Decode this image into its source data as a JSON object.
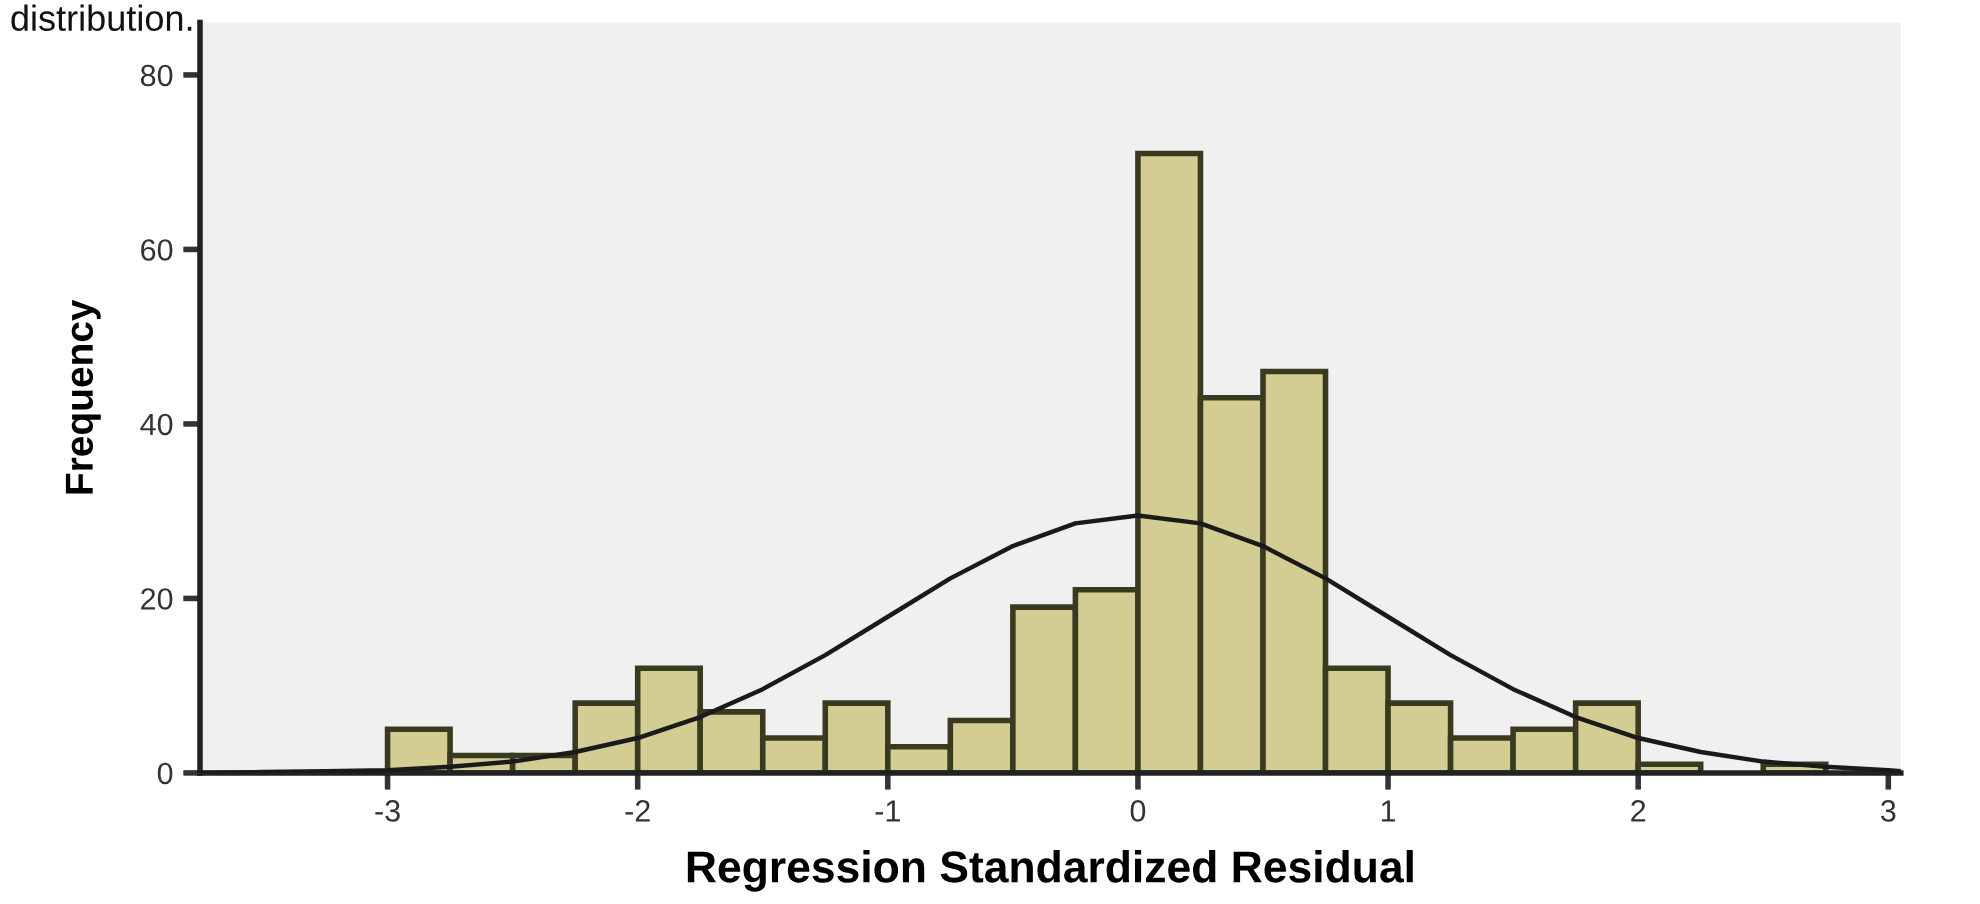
{
  "chart_data": {
    "type": "histogram",
    "xlabel": "Regression Standardized Residual",
    "ylabel": "Frequency",
    "annotations": [
      "distribution."
    ],
    "bins": [
      -3,
      -2.75,
      -2.5,
      -2.25,
      -2,
      -1.75,
      -1.5,
      -1.25,
      -1,
      -0.75,
      -0.5,
      -0.25,
      0,
      0.25,
      0.5,
      0.75,
      1,
      1.25,
      1.5,
      1.75,
      2,
      2.25,
      2.5,
      2.75
    ],
    "values": [
      5,
      2,
      2,
      8,
      12,
      7,
      4,
      8,
      3,
      6,
      19,
      21,
      71,
      43,
      46,
      12,
      8,
      4,
      5,
      8,
      1,
      0,
      1
    ],
    "color": "#d3cd94",
    "series": [
      {
        "type": "line",
        "color": "#1a1a1a",
        "x": [
          -3.75,
          -3.5,
          -3.25,
          -3,
          -2.75,
          -2.5,
          -2.25,
          -2,
          -1.75,
          -1.5,
          -1.25,
          -1,
          -0.75,
          -0.5,
          -0.25,
          0,
          0.25,
          0.5,
          0.75,
          1,
          1.25,
          1.5,
          1.75,
          2,
          2.25,
          2.5,
          2.75,
          3,
          3.05
        ],
        "values": [
          0,
          0.1,
          0.2,
          0.3,
          0.7,
          1.3,
          2.4,
          4,
          6.4,
          9.6,
          13.5,
          17.9,
          22.3,
          26,
          28.6,
          29.5,
          28.6,
          26,
          22.3,
          17.9,
          13.5,
          9.6,
          6.4,
          4,
          2.4,
          1.3,
          0.7,
          0.3,
          0.2
        ]
      }
    ],
    "xlim": [
      -3.75,
      3.05
    ],
    "ylim": [
      0,
      86
    ],
    "xticks": [
      -3,
      -2,
      -1,
      0,
      1,
      2,
      3
    ],
    "yticks": [
      0,
      20,
      40,
      60,
      80
    ],
    "grid": false,
    "legend": false,
    "marker": "none",
    "line_style": "solid"
  }
}
